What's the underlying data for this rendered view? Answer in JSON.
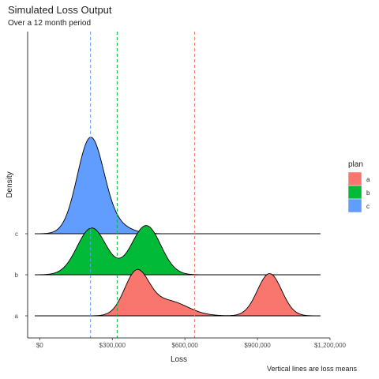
{
  "title": "Simulated Loss Output",
  "subtitle": "Over a 12 month period",
  "caption": "Vertical lines are loss means",
  "chart_data": {
    "type": "area",
    "subtype": "ridgeline-density",
    "xlabel": "Loss",
    "ylabel": "Density",
    "xlim": [
      -50000,
      1200000
    ],
    "x_ticks": [
      {
        "value": 0,
        "label": "$0"
      },
      {
        "value": 300000,
        "label": "$300,000"
      },
      {
        "value": 600000,
        "label": "$600,000"
      },
      {
        "value": 900000,
        "label": "$900,000"
      },
      {
        "value": 1200000,
        "label": "$1,200,000"
      }
    ],
    "categories": [
      "a",
      "b",
      "c"
    ],
    "grid": false,
    "legend": {
      "title": "plan",
      "position": "right"
    },
    "x_range": [
      -20000,
      1160000
    ],
    "series": [
      {
        "name": "a",
        "color": "#F8766D",
        "components": [
          {
            "mu": 400000,
            "sigma": 50000,
            "w": 1.0
          },
          {
            "mu": 530000,
            "sigma": 80000,
            "w": 0.35
          },
          {
            "mu": 950000,
            "sigma": 50000,
            "w": 1.0
          }
        ],
        "peak_height": 1.13,
        "mean": 640000
      },
      {
        "name": "b",
        "color": "#00BA38",
        "components": [
          {
            "mu": 215000,
            "sigma": 60000,
            "w": 0.95
          },
          {
            "mu": 440000,
            "sigma": 60000,
            "w": 1.0
          }
        ],
        "peak_height": 1.2,
        "mean": 320000
      },
      {
        "name": "c",
        "color": "#619CFF",
        "components": [
          {
            "mu": 210000,
            "sigma": 55000,
            "w": 1.0
          },
          {
            "mu": 320000,
            "sigma": 60000,
            "w": 0.07
          }
        ],
        "peak_height": 2.35,
        "mean": 210000
      }
    ]
  }
}
